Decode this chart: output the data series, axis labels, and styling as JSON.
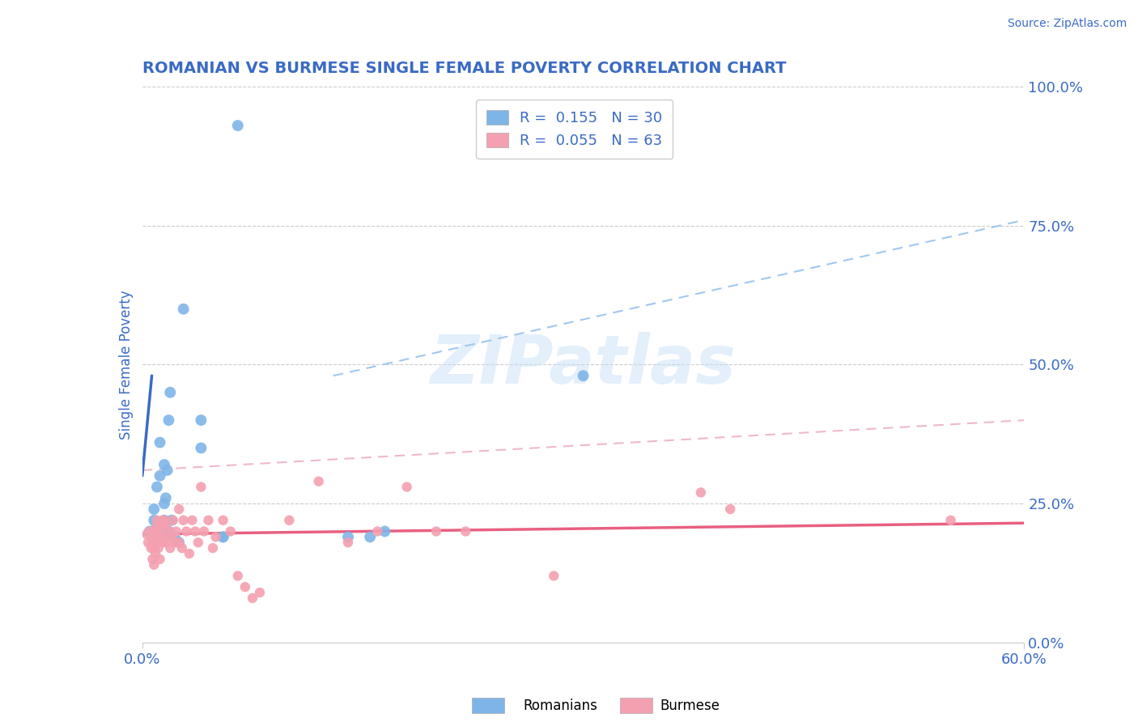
{
  "title": "ROMANIAN VS BURMESE SINGLE FEMALE POVERTY CORRELATION CHART",
  "source": "Source: ZipAtlas.com",
  "ylabel": "Single Female Poverty",
  "xlim": [
    0.0,
    0.6
  ],
  "ylim": [
    0.0,
    1.0
  ],
  "xtick_positions": [
    0.0,
    0.6
  ],
  "xticklabels": [
    "0.0%",
    "60.0%"
  ],
  "ytick_vals": [
    0.0,
    0.25,
    0.5,
    0.75,
    1.0
  ],
  "yticklabels_right": [
    "0.0%",
    "25.0%",
    "50.0%",
    "75.0%",
    "100.0%"
  ],
  "romanian_R": 0.155,
  "romanian_N": 30,
  "burmese_R": 0.055,
  "burmese_N": 63,
  "romanian_color": "#7EB5E8",
  "burmese_color": "#F4A0B0",
  "romanian_line_color": "#3A6BC4",
  "burmese_line_color": "#E86080",
  "romanian_dash_color": "#A0C8F0",
  "burmese_dash_color": "#F0B8C8",
  "watermark_text": "ZIPatlas",
  "title_color": "#3A6BC4",
  "tick_color": "#3A6BC4",
  "legend_rom_label": "R =  0.155   N = 30",
  "legend_bur_label": "R =  0.055   N = 63",
  "rom_trendline": [
    0.0,
    0.3,
    0.0065,
    0.48
  ],
  "bur_trendline": [
    0.0,
    0.195,
    0.6,
    0.215
  ],
  "rom_dashline": [
    0.13,
    0.48,
    0.6,
    0.76
  ],
  "bur_dashline": [
    0.0,
    0.31,
    0.6,
    0.4
  ],
  "romanian_scatter_x": [
    0.005,
    0.008,
    0.008,
    0.01,
    0.01,
    0.01,
    0.012,
    0.012,
    0.013,
    0.015,
    0.015,
    0.015,
    0.016,
    0.017,
    0.018,
    0.018,
    0.019,
    0.02,
    0.022,
    0.025,
    0.028,
    0.04,
    0.04,
    0.055,
    0.055,
    0.065,
    0.14,
    0.155,
    0.165,
    0.3
  ],
  "romanian_scatter_y": [
    0.2,
    0.22,
    0.24,
    0.19,
    0.21,
    0.28,
    0.3,
    0.36,
    0.21,
    0.22,
    0.25,
    0.32,
    0.26,
    0.31,
    0.2,
    0.4,
    0.45,
    0.22,
    0.19,
    0.18,
    0.6,
    0.35,
    0.4,
    0.19,
    0.19,
    0.93,
    0.19,
    0.19,
    0.2,
    0.48
  ],
  "burmese_scatter_x": [
    0.003,
    0.004,
    0.005,
    0.006,
    0.006,
    0.007,
    0.007,
    0.008,
    0.008,
    0.008,
    0.009,
    0.009,
    0.01,
    0.01,
    0.01,
    0.011,
    0.011,
    0.012,
    0.012,
    0.013,
    0.014,
    0.014,
    0.015,
    0.015,
    0.016,
    0.016,
    0.018,
    0.019,
    0.02,
    0.021,
    0.022,
    0.023,
    0.025,
    0.025,
    0.027,
    0.028,
    0.03,
    0.032,
    0.034,
    0.036,
    0.038,
    0.04,
    0.042,
    0.045,
    0.048,
    0.05,
    0.055,
    0.06,
    0.065,
    0.07,
    0.075,
    0.08,
    0.1,
    0.12,
    0.14,
    0.16,
    0.18,
    0.2,
    0.22,
    0.28,
    0.38,
    0.4,
    0.55
  ],
  "burmese_scatter_y": [
    0.195,
    0.18,
    0.2,
    0.17,
    0.19,
    0.15,
    0.18,
    0.14,
    0.17,
    0.2,
    0.16,
    0.19,
    0.21,
    0.18,
    0.22,
    0.2,
    0.17,
    0.19,
    0.15,
    0.21,
    0.18,
    0.22,
    0.19,
    0.22,
    0.18,
    0.21,
    0.2,
    0.17,
    0.19,
    0.22,
    0.18,
    0.2,
    0.24,
    0.18,
    0.17,
    0.22,
    0.2,
    0.16,
    0.22,
    0.2,
    0.18,
    0.28,
    0.2,
    0.22,
    0.17,
    0.19,
    0.22,
    0.2,
    0.12,
    0.1,
    0.08,
    0.09,
    0.22,
    0.29,
    0.18,
    0.2,
    0.28,
    0.2,
    0.2,
    0.12,
    0.27,
    0.24,
    0.22
  ]
}
